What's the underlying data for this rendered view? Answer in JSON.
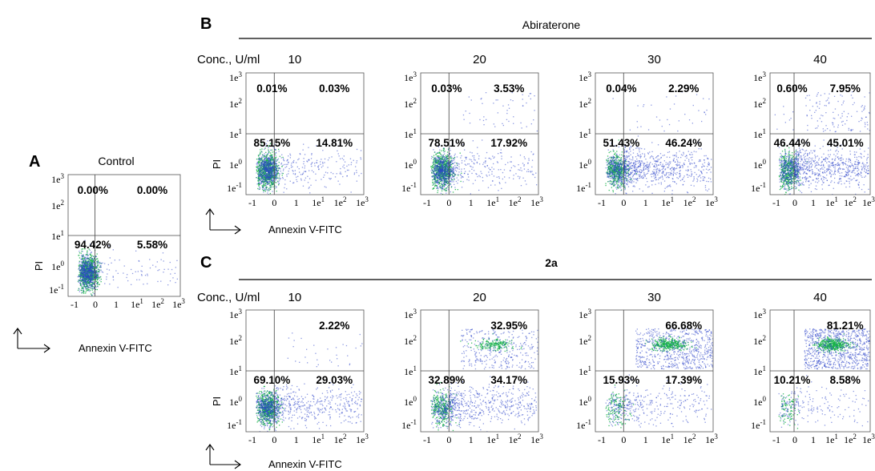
{
  "panels": {
    "a": {
      "letter": "A",
      "header": "Control"
    },
    "b": {
      "letter": "B",
      "header": "Abiraterone"
    },
    "c": {
      "letter": "C",
      "header": "2a"
    }
  },
  "conc_label": "Conc., U/ml",
  "x_axis_label": "Annexin V-FITC",
  "y_axis_label": "PI",
  "x_ticks": [
    "-1",
    "0",
    "1",
    "1e1",
    "1e2",
    "1e3"
  ],
  "y_ticks": [
    "1e-1",
    "1e0",
    "1e1",
    "1e2",
    "1e3"
  ],
  "colors": {
    "dots": "#2b44c8",
    "dense": "#19b34a",
    "axis": "#555555"
  },
  "chart_data": [
    {
      "type": "scatter",
      "panel": "A",
      "title": "Control",
      "quadrants": {
        "UL": "0.00%",
        "UR": "0.00%",
        "LL": "94.42%",
        "LR": "5.58%"
      }
    },
    {
      "type": "scatter",
      "panel": "B",
      "group": "Abiraterone",
      "conc": "10",
      "quadrants": {
        "UL": "0.01%",
        "UR": "0.03%",
        "LL": "85.15%",
        "LR": "14.81%"
      }
    },
    {
      "type": "scatter",
      "panel": "B",
      "group": "Abiraterone",
      "conc": "20",
      "quadrants": {
        "UL": "0.03%",
        "UR": "3.53%",
        "LL": "78.51%",
        "LR": "17.92%"
      }
    },
    {
      "type": "scatter",
      "panel": "B",
      "group": "Abiraterone",
      "conc": "30",
      "quadrants": {
        "UL": "0.04%",
        "UR": "2.29%",
        "LL": "51.43%",
        "LR": "46.24%"
      }
    },
    {
      "type": "scatter",
      "panel": "B",
      "group": "Abiraterone",
      "conc": "40",
      "quadrants": {
        "UL": "0.60%",
        "UR": "7.95%",
        "LL": "46.44%",
        "LR": "45.01%"
      }
    },
    {
      "type": "scatter",
      "panel": "C",
      "group": "2a",
      "conc": "10",
      "quadrants": {
        "UL": "",
        "UR": "2.22%",
        "LL": "69.10%",
        "LR": "29.03%"
      }
    },
    {
      "type": "scatter",
      "panel": "C",
      "group": "2a",
      "conc": "20",
      "quadrants": {
        "UL": "",
        "UR": "32.95%",
        "LL": "32.89%",
        "LR": "34.17%"
      }
    },
    {
      "type": "scatter",
      "panel": "C",
      "group": "2a",
      "conc": "30",
      "quadrants": {
        "UL": "",
        "UR": "66.68%",
        "LL": "15.93%",
        "LR": "17.39%"
      }
    },
    {
      "type": "scatter",
      "panel": "C",
      "group": "2a",
      "conc": "40",
      "quadrants": {
        "UL": "",
        "UR": "81.21%",
        "LL": "10.21%",
        "LR": "8.58%"
      }
    }
  ]
}
